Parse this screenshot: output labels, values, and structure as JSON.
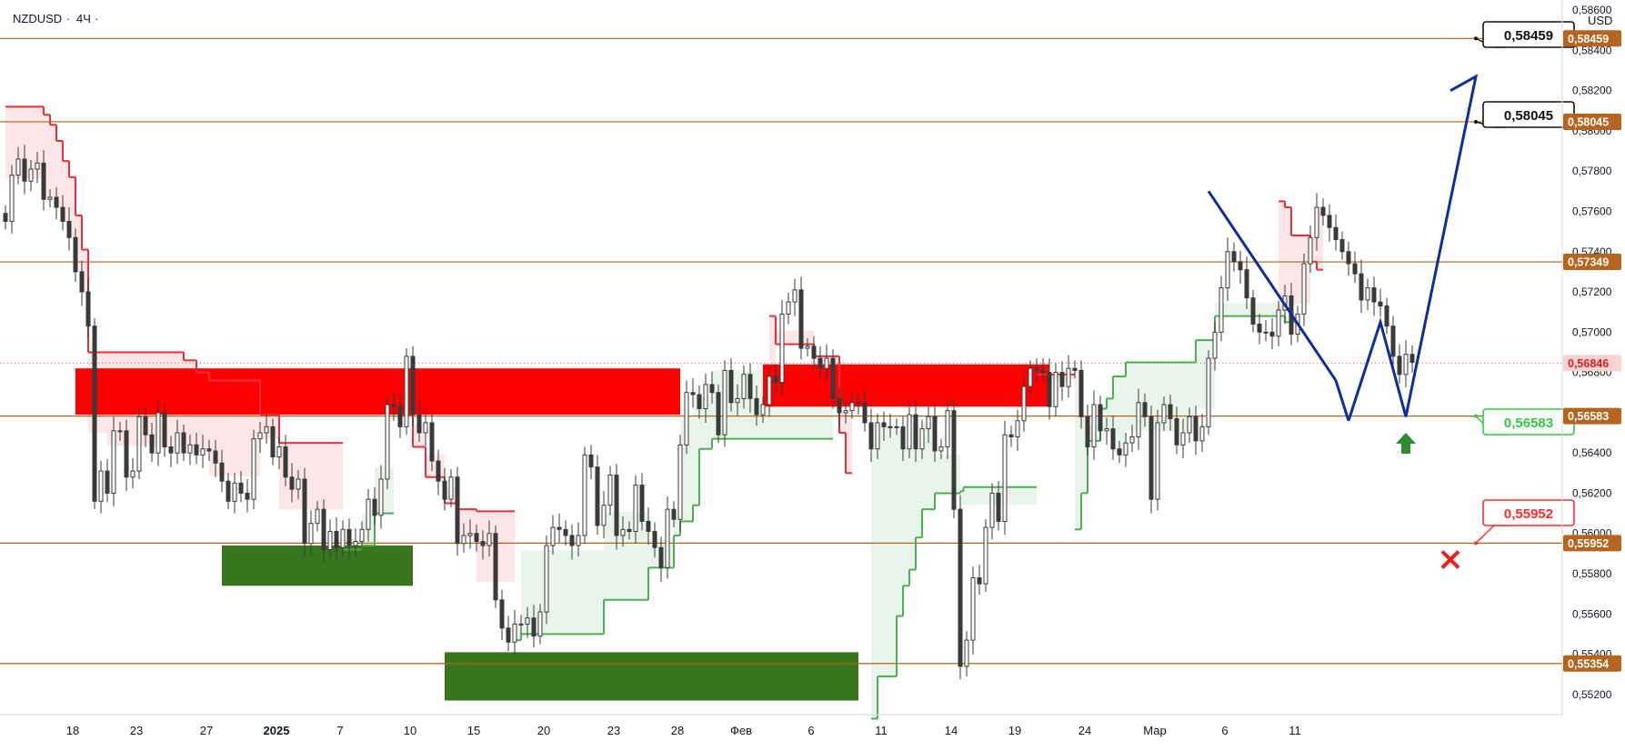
{
  "header": {
    "symbol": "NZDUSD",
    "timeframe": "4Ч",
    "separator": "·",
    "currency": "USD"
  },
  "colors": {
    "level_line": "#b5651d",
    "level_badge": "#b5651d",
    "supply_zone": "#ff0000",
    "demand_zone": "#38761d",
    "bear_stop": "#e8303c",
    "bull_stop": "#4caf50",
    "forecast_path": "#0d2e9c",
    "candle": "#3a3a3a",
    "target_callout": "#111111",
    "entry_callout": "#2ecc40",
    "stop_callout": "#ff2a2a"
  },
  "chart_data": {
    "type": "candlestick",
    "symbol": "NZDUSD",
    "timeframe": "4H",
    "y_axis": {
      "min": 0.551,
      "max": 0.5865,
      "ticks": [
        "0,55200",
        "0,55400",
        "0,55600",
        "0,55800",
        "0,56000",
        "0,56200",
        "0,56400",
        "0,56600",
        "0,56800",
        "0,57000",
        "0,57200",
        "0,57400",
        "0,57600",
        "0,57800",
        "0,58000",
        "0,58200",
        "0,58400",
        "0,58600"
      ],
      "tick_values": [
        0.552,
        0.554,
        0.556,
        0.558,
        0.56,
        0.562,
        0.564,
        0.566,
        0.568,
        0.57,
        0.572,
        0.574,
        0.576,
        0.578,
        0.58,
        0.582,
        0.584,
        0.586
      ]
    },
    "x_axis": {
      "labels": [
        "18",
        "23",
        "27",
        "2025",
        "7",
        "10",
        "15",
        "20",
        "23",
        "28",
        "Фев",
        "6",
        "11",
        "14",
        "19",
        "24",
        "Мар",
        "6",
        "11"
      ],
      "bold_labels": [
        "2025"
      ],
      "bar_index_span": [
        0,
        244
      ]
    },
    "current_price": {
      "value": 0.56846,
      "label": "0,56846"
    },
    "levels": [
      {
        "value": 0.58459,
        "label": "0,58459"
      },
      {
        "value": 0.58045,
        "label": "0,58045"
      },
      {
        "value": 0.57349,
        "label": "0,57349"
      },
      {
        "value": 0.56583,
        "label": "0,56583"
      },
      {
        "value": 0.55952,
        "label": "0,55952"
      },
      {
        "value": 0.55354,
        "label": "0,55354"
      }
    ],
    "zones": [
      {
        "kind": "supply",
        "from_bar": 11,
        "to_bar": 106,
        "low": 0.5659,
        "high": 0.5682
      },
      {
        "kind": "supply",
        "from_bar": 119,
        "to_bar": 164,
        "low": 0.5663,
        "high": 0.5684
      },
      {
        "kind": "demand",
        "from_bar": 34,
        "to_bar": 64,
        "low": 0.5574,
        "high": 0.5594
      },
      {
        "kind": "demand",
        "from_bar": 69,
        "to_bar": 134,
        "low": 0.5517,
        "high": 0.5541
      }
    ],
    "callouts": [
      {
        "kind": "target",
        "text": "0,58459"
      },
      {
        "kind": "target",
        "text": "0,58045"
      },
      {
        "kind": "entry",
        "text": "0,56583"
      },
      {
        "kind": "stop",
        "text": "0,55952"
      }
    ],
    "forecast_path": [
      {
        "bar": 211,
        "price": 0.5656
      },
      {
        "bar": 216,
        "price": 0.5705
      },
      {
        "bar": 220,
        "price": 0.5658
      },
      {
        "bar": 231,
        "price": 0.5827
      },
      {
        "bar": 227,
        "price": 0.582
      }
    ],
    "channel_line": [
      {
        "bar": 189,
        "price": 0.577
      },
      {
        "bar": 209,
        "price": 0.5676
      }
    ],
    "bear_stop_segments": [
      {
        "from_bar": 0,
        "to_bar": 6,
        "price": 0.5812
      },
      {
        "from_bar": 6,
        "to_bar": 7,
        "price": 0.5808
      },
      {
        "from_bar": 7,
        "to_bar": 8,
        "price": 0.5803
      },
      {
        "from_bar": 8,
        "to_bar": 9,
        "price": 0.5795
      },
      {
        "from_bar": 9,
        "to_bar": 10,
        "price": 0.5785
      },
      {
        "from_bar": 10,
        "to_bar": 11,
        "price": 0.5777
      },
      {
        "from_bar": 11,
        "to_bar": 12,
        "price": 0.5758
      },
      {
        "from_bar": 12,
        "to_bar": 13,
        "price": 0.5741
      },
      {
        "from_bar": 13,
        "to_bar": 16,
        "price": 0.569
      },
      {
        "from_bar": 16,
        "to_bar": 28,
        "price": 0.569
      },
      {
        "from_bar": 28,
        "to_bar": 30,
        "price": 0.5686
      },
      {
        "from_bar": 30,
        "to_bar": 32,
        "price": 0.568
      },
      {
        "from_bar": 32,
        "to_bar": 40,
        "price": 0.5676
      },
      {
        "from_bar": 40,
        "to_bar": 43,
        "price": 0.5659
      },
      {
        "from_bar": 43,
        "to_bar": 53,
        "price": 0.5645
      },
      {
        "from_bar": 62,
        "to_bar": 64,
        "price": 0.5659
      },
      {
        "from_bar": 64,
        "to_bar": 66,
        "price": 0.5643
      },
      {
        "from_bar": 66,
        "to_bar": 69,
        "price": 0.5628
      },
      {
        "from_bar": 69,
        "to_bar": 71,
        "price": 0.5615
      },
      {
        "from_bar": 71,
        "to_bar": 74,
        "price": 0.5612
      },
      {
        "from_bar": 74,
        "to_bar": 80,
        "price": 0.5611
      },
      {
        "from_bar": 120,
        "to_bar": 121,
        "price": 0.5708
      },
      {
        "from_bar": 121,
        "to_bar": 127,
        "price": 0.5694
      },
      {
        "from_bar": 127,
        "to_bar": 131,
        "price": 0.5688
      },
      {
        "from_bar": 131,
        "to_bar": 132,
        "price": 0.565
      },
      {
        "from_bar": 132,
        "to_bar": 133,
        "price": 0.563
      },
      {
        "from_bar": 162,
        "to_bar": 168,
        "price": 0.5679
      },
      {
        "from_bar": 200,
        "to_bar": 201,
        "price": 0.5765
      },
      {
        "from_bar": 201,
        "to_bar": 202,
        "price": 0.5762
      },
      {
        "from_bar": 202,
        "to_bar": 205,
        "price": 0.5748
      },
      {
        "from_bar": 205,
        "to_bar": 206,
        "price": 0.5735
      },
      {
        "from_bar": 206,
        "to_bar": 207,
        "price": 0.5731
      }
    ],
    "bull_stop_segments": [
      {
        "from_bar": 53,
        "to_bar": 56,
        "price": 0.5592
      },
      {
        "from_bar": 56,
        "to_bar": 58,
        "price": 0.5594
      },
      {
        "from_bar": 58,
        "to_bar": 61,
        "price": 0.561
      },
      {
        "from_bar": 80,
        "to_bar": 81,
        "price": 0.5547
      },
      {
        "from_bar": 81,
        "to_bar": 94,
        "price": 0.555
      },
      {
        "from_bar": 94,
        "to_bar": 101,
        "price": 0.5567
      },
      {
        "from_bar": 101,
        "to_bar": 105,
        "price": 0.5583
      },
      {
        "from_bar": 105,
        "to_bar": 106,
        "price": 0.5599
      },
      {
        "from_bar": 106,
        "to_bar": 108,
        "price": 0.5606
      },
      {
        "from_bar": 108,
        "to_bar": 109,
        "price": 0.5614
      },
      {
        "from_bar": 109,
        "to_bar": 111,
        "price": 0.5642
      },
      {
        "from_bar": 111,
        "to_bar": 130,
        "price": 0.5647
      },
      {
        "from_bar": 136,
        "to_bar": 137,
        "price": 0.5508
      },
      {
        "from_bar": 137,
        "to_bar": 140,
        "price": 0.5529
      },
      {
        "from_bar": 140,
        "to_bar": 141,
        "price": 0.5559
      },
      {
        "from_bar": 141,
        "to_bar": 142,
        "price": 0.5574
      },
      {
        "from_bar": 142,
        "to_bar": 143,
        "price": 0.5582
      },
      {
        "from_bar": 143,
        "to_bar": 144,
        "price": 0.5598
      },
      {
        "from_bar": 144,
        "to_bar": 146,
        "price": 0.5612
      },
      {
        "from_bar": 146,
        "to_bar": 150,
        "price": 0.562
      },
      {
        "from_bar": 150,
        "to_bar": 150.5,
        "price": 0.5621
      },
      {
        "from_bar": 150.5,
        "to_bar": 162,
        "price": 0.5623
      },
      {
        "from_bar": 168,
        "to_bar": 169,
        "price": 0.5602
      },
      {
        "from_bar": 169,
        "to_bar": 170,
        "price": 0.562
      },
      {
        "from_bar": 170,
        "to_bar": 172,
        "price": 0.5646
      },
      {
        "from_bar": 172,
        "to_bar": 173,
        "price": 0.5662
      },
      {
        "from_bar": 173,
        "to_bar": 174,
        "price": 0.5667
      },
      {
        "from_bar": 174,
        "to_bar": 176,
        "price": 0.5678
      },
      {
        "from_bar": 176,
        "to_bar": 187,
        "price": 0.5685
      },
      {
        "from_bar": 187,
        "to_bar": 190,
        "price": 0.5696
      },
      {
        "from_bar": 190,
        "to_bar": 201,
        "price": 0.5708
      },
      {
        "from_bar": 201,
        "to_bar": 203,
        "price": 0.5705
      }
    ],
    "candles_close": [
      0.5755,
      0.5778,
      0.5786,
      0.5775,
      0.5781,
      0.5784,
      0.5766,
      0.5767,
      0.5762,
      0.5755,
      0.5747,
      0.573,
      0.572,
      0.5703,
      0.5616,
      0.5631,
      0.562,
      0.5651,
      0.5651,
      0.5628,
      0.5631,
      0.5658,
      0.5649,
      0.564,
      0.566,
      0.5643,
      0.564,
      0.565,
      0.564,
      0.5644,
      0.5639,
      0.5642,
      0.5641,
      0.5635,
      0.5626,
      0.5616,
      0.5625,
      0.562,
      0.5617,
      0.5647,
      0.565,
      0.5653,
      0.5638,
      0.5643,
      0.5628,
      0.5622,
      0.5627,
      0.5595,
      0.5605,
      0.5612,
      0.5592,
      0.5601,
      0.5593,
      0.5602,
      0.5594,
      0.5596,
      0.5602,
      0.5617,
      0.5609,
      0.5627,
      0.5664,
      0.5663,
      0.5653,
      0.5688,
      0.5659,
      0.565,
      0.5655,
      0.5636,
      0.5626,
      0.5617,
      0.5628,
      0.5595,
      0.5599,
      0.56,
      0.5596,
      0.5594,
      0.56,
      0.5567,
      0.5553,
      0.5546,
      0.5555,
      0.5555,
      0.5558,
      0.5549,
      0.5561,
      0.5594,
      0.5603,
      0.5602,
      0.5599,
      0.5594,
      0.5599,
      0.5639,
      0.5633,
      0.5604,
      0.5614,
      0.5629,
      0.5599,
      0.5602,
      0.5601,
      0.5624,
      0.5606,
      0.5601,
      0.5593,
      0.5583,
      0.5612,
      0.5607,
      0.5644,
      0.567,
      0.5669,
      0.5662,
      0.5674,
      0.567,
      0.5649,
      0.5681,
      0.5665,
      0.5667,
      0.5679,
      0.5667,
      0.5659,
      0.5664,
      0.5678,
      0.5675,
      0.5709,
      0.5715,
      0.5721,
      0.5692,
      0.5693,
      0.5687,
      0.5682,
      0.5687,
      0.5667,
      0.566,
      0.5661,
      0.5665,
      0.5665,
      0.5655,
      0.5642,
      0.5655,
      0.5653,
      0.5653,
      0.5653,
      0.5642,
      0.5659,
      0.5642,
      0.5652,
      0.5658,
      0.5641,
      0.5643,
      0.5661,
      0.5612,
      0.5534,
      0.5547,
      0.5578,
      0.5575,
      0.5603,
      0.562,
      0.5606,
      0.5649,
      0.5648,
      0.5656,
      0.5673,
      0.5682,
      0.5681,
      0.568,
      0.5663,
      0.568,
      0.5673,
      0.5682,
      0.5681,
      0.5658,
      0.5643,
      0.5664,
      0.5651,
      0.5652,
      0.5642,
      0.5639,
      0.5645,
      0.5648,
      0.5665,
      0.5658,
      0.5617,
      0.5655,
      0.5664,
      0.5657,
      0.5644,
      0.565,
      0.5658,
      0.5646,
      0.5653,
      0.5687,
      0.57,
      0.5722,
      0.574,
      0.5735,
      0.5731,
      0.5717,
      0.5704,
      0.57,
      0.57,
      0.5698,
      0.5711,
      0.5718,
      0.5699,
      0.5709,
      0.5734,
      0.5747,
      0.5762,
      0.5758,
      0.5752,
      0.5746,
      0.574,
      0.5734,
      0.5729,
      0.5716,
      0.5722,
      0.5715,
      0.5713,
      0.5703,
      0.5688,
      0.5679,
      0.5689,
      0.5685
    ]
  }
}
